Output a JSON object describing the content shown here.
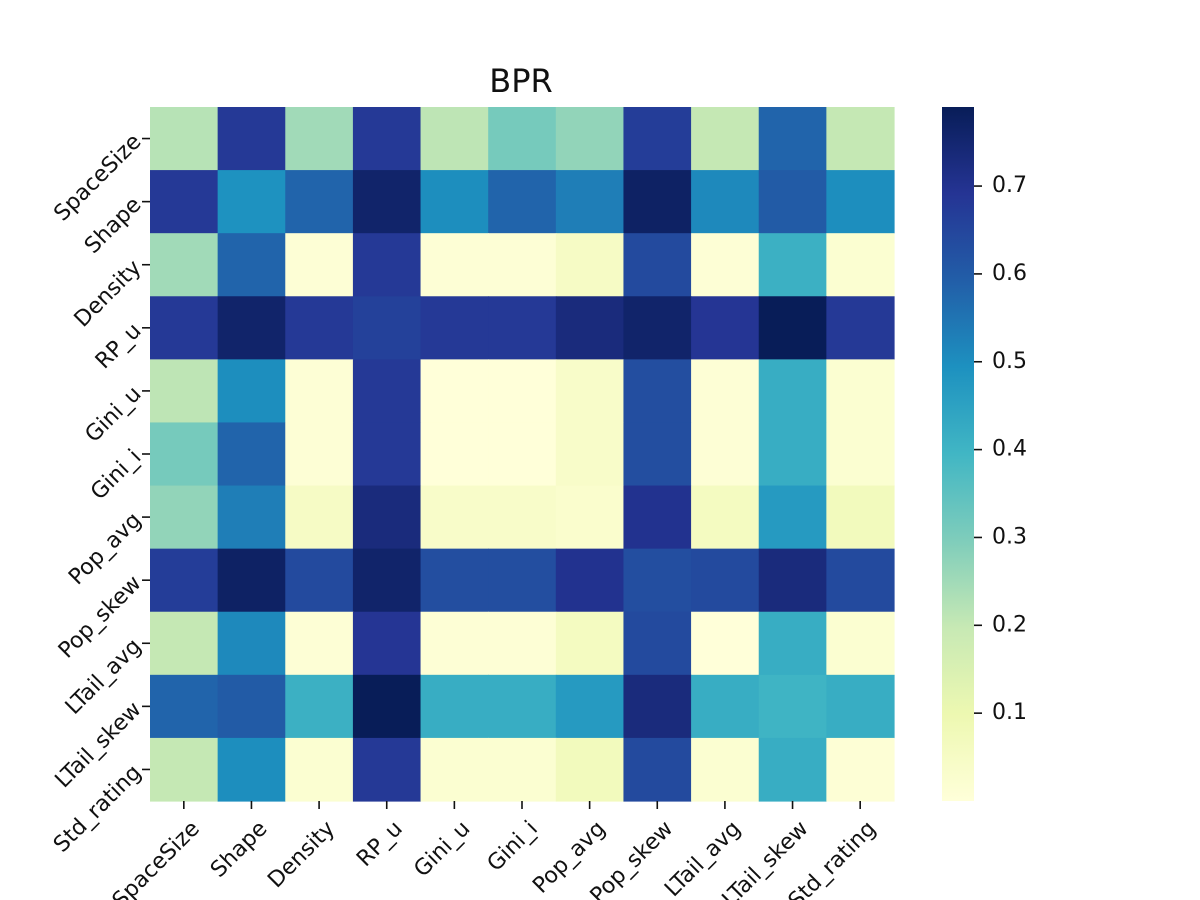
{
  "chart_data": {
    "type": "heatmap",
    "title": "BPR",
    "xlabel": "",
    "ylabel": "",
    "labels": [
      "SpaceSize",
      "Shape",
      "Density",
      "RP_u",
      "Gini_u",
      "Gini_i",
      "Pop_avg",
      "Pop_skew",
      "LTail_avg",
      "LTail_skew",
      "Std_rating"
    ],
    "matrix": [
      [
        0.22,
        0.68,
        0.25,
        0.68,
        0.21,
        0.31,
        0.27,
        0.67,
        0.2,
        0.58,
        0.2
      ],
      [
        0.68,
        0.49,
        0.58,
        0.76,
        0.5,
        0.58,
        0.53,
        0.77,
        0.51,
        0.6,
        0.5
      ],
      [
        0.25,
        0.58,
        0.01,
        0.68,
        0.01,
        0.01,
        0.05,
        0.64,
        0.01,
        0.41,
        0.02
      ],
      [
        0.68,
        0.76,
        0.68,
        0.66,
        0.68,
        0.68,
        0.73,
        0.76,
        0.69,
        0.79,
        0.68
      ],
      [
        0.21,
        0.5,
        0.01,
        0.68,
        0.0,
        0.0,
        0.04,
        0.63,
        0.01,
        0.42,
        0.02
      ],
      [
        0.31,
        0.58,
        0.01,
        0.68,
        0.0,
        0.0,
        0.04,
        0.63,
        0.01,
        0.42,
        0.02
      ],
      [
        0.27,
        0.53,
        0.05,
        0.73,
        0.04,
        0.04,
        0.03,
        0.7,
        0.06,
        0.47,
        0.07
      ],
      [
        0.67,
        0.77,
        0.64,
        0.76,
        0.63,
        0.63,
        0.7,
        0.63,
        0.64,
        0.73,
        0.64
      ],
      [
        0.2,
        0.51,
        0.01,
        0.69,
        0.01,
        0.01,
        0.06,
        0.64,
        0.0,
        0.42,
        0.02
      ],
      [
        0.58,
        0.6,
        0.41,
        0.79,
        0.42,
        0.42,
        0.47,
        0.73,
        0.42,
        0.4,
        0.42
      ],
      [
        0.2,
        0.5,
        0.02,
        0.68,
        0.02,
        0.02,
        0.07,
        0.64,
        0.02,
        0.42,
        0.01
      ]
    ],
    "colormap": "YlGnBu",
    "colorbar": {
      "range": [
        0.0,
        0.79
      ],
      "ticks": [
        0.1,
        0.2,
        0.3,
        0.4,
        0.5,
        0.6,
        0.7
      ],
      "tick_labels": [
        "0.1",
        "0.2",
        "0.3",
        "0.4",
        "0.5",
        "0.6",
        "0.7"
      ]
    },
    "grid": false
  },
  "colors": {
    "ylgnbu": [
      "#ffffd9",
      "#edf8b1",
      "#c7e9b4",
      "#7fcdbb",
      "#41b6c4",
      "#1d91c0",
      "#225ea8",
      "#253494",
      "#081d58"
    ]
  }
}
